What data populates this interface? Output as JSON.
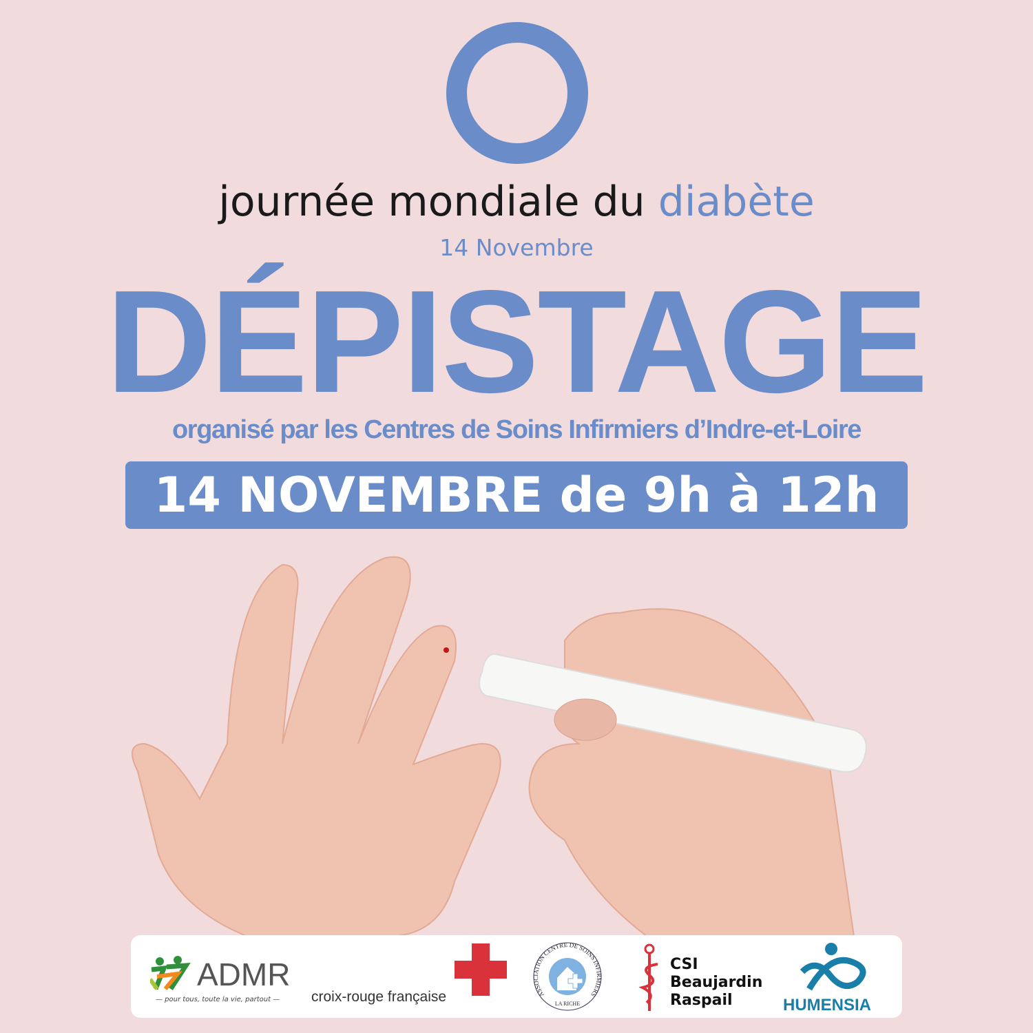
{
  "header": {
    "title_prefix": "journée mondiale du ",
    "title_accent": "diabète",
    "subtitle_date": "14 Novembre"
  },
  "main": {
    "headline": "DÉPISTAGE",
    "organizer": "organisé par les Centres de Soins Infirmiers d’Indre-et-Loire",
    "date_banner": "14 NOVEMBRE de 9h à 12h"
  },
  "logos": {
    "admr": {
      "name": "ADMR",
      "tagline": "— pour tous, toute la vie, partout —"
    },
    "croix_rouge": {
      "name": "croix-rouge française"
    },
    "csi_la_riche": {
      "name": "ASSOCIATION CENTRE DE SOINS INFIRMIERS",
      "place": "LA RICHE"
    },
    "csi_beaujardin": {
      "line1": "CSI",
      "line2": "Beaujardin",
      "line3": "Raspail"
    },
    "humensia": {
      "name": "HUMENSIA"
    }
  },
  "colors": {
    "background": "#f1dbdc",
    "accent": "#6a8cc9",
    "red_cross": "#d9323a",
    "humensia": "#1a7fa8"
  }
}
